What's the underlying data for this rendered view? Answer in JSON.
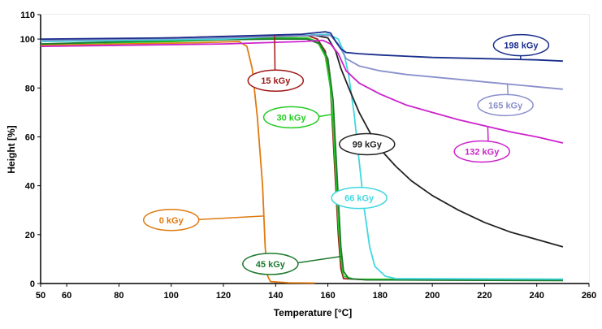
{
  "chart_data": {
    "type": "line",
    "xlabel": "Temperature [°C]",
    "ylabel": "Height [%]",
    "xlim": [
      50,
      260
    ],
    "ylim": [
      0,
      110
    ],
    "x_ticks": [
      50,
      60,
      80,
      100,
      120,
      140,
      160,
      180,
      200,
      220,
      240,
      260
    ],
    "y_ticks": [
      0,
      20,
      40,
      60,
      80,
      100,
      110
    ],
    "grid": true,
    "series": [
      {
        "name": "0 kGy",
        "color": "#E07A10",
        "label_at": [
          100,
          26
        ],
        "points": [
          [
            50,
            97.5
          ],
          [
            80,
            98
          ],
          [
            110,
            98.5
          ],
          [
            126,
            99
          ],
          [
            129,
            97
          ],
          [
            131,
            88
          ],
          [
            133,
            68
          ],
          [
            135,
            40
          ],
          [
            136,
            15
          ],
          [
            137,
            3
          ],
          [
            138,
            0.8
          ],
          [
            145,
            0.3
          ],
          [
            155,
            0.2
          ]
        ]
      },
      {
        "name": "15 kGy",
        "color": "#A01818",
        "label_at": [
          140,
          83
        ],
        "points": [
          [
            50,
            99.5
          ],
          [
            100,
            100.5
          ],
          [
            140,
            101.5
          ],
          [
            152,
            101.5
          ],
          [
            156,
            100
          ],
          [
            159,
            95
          ],
          [
            161,
            80
          ],
          [
            162,
            60
          ],
          [
            163,
            40
          ],
          [
            164,
            20
          ],
          [
            165,
            6
          ],
          [
            166,
            2
          ],
          [
            175,
            1.5
          ],
          [
            250,
            1.3
          ]
        ]
      },
      {
        "name": "30 kGy",
        "color": "#22CC22",
        "label_at": [
          146,
          68
        ],
        "points": [
          [
            50,
            98
          ],
          [
            100,
            99
          ],
          [
            140,
            100.5
          ],
          [
            152,
            100.5
          ],
          [
            156,
            99
          ],
          [
            159,
            93
          ],
          [
            161,
            80
          ],
          [
            162,
            65
          ],
          [
            163,
            45
          ],
          [
            164,
            25
          ],
          [
            165,
            10
          ],
          [
            166,
            3
          ],
          [
            170,
            1.8
          ],
          [
            250,
            1.6
          ]
        ]
      },
      {
        "name": "45 kGy",
        "color": "#1E7A2E",
        "label_at": [
          138,
          8
        ],
        "points": [
          [
            50,
            98
          ],
          [
            100,
            99.5
          ],
          [
            140,
            100
          ],
          [
            152,
            100
          ],
          [
            157,
            98
          ],
          [
            160,
            92
          ],
          [
            162,
            75
          ],
          [
            163,
            55
          ],
          [
            164,
            35
          ],
          [
            165,
            15
          ],
          [
            166,
            5
          ],
          [
            168,
            2
          ],
          [
            175,
            1.5
          ],
          [
            250,
            1.2
          ]
        ]
      },
      {
        "name": "66 kGy",
        "color": "#40D8E0",
        "label_at": [
          172,
          35
        ],
        "points": [
          [
            50,
            99
          ],
          [
            120,
            100
          ],
          [
            150,
            101.5
          ],
          [
            160,
            102
          ],
          [
            164,
            100
          ],
          [
            166,
            95
          ],
          [
            168,
            85
          ],
          [
            170,
            70
          ],
          [
            172,
            50
          ],
          [
            174,
            30
          ],
          [
            176,
            15
          ],
          [
            178,
            7
          ],
          [
            182,
            3
          ],
          [
            186,
            2
          ],
          [
            250,
            1.8
          ]
        ]
      },
      {
        "name": "99 kGy",
        "color": "#222222",
        "label_at": [
          175,
          57
        ],
        "points": [
          [
            50,
            99.5
          ],
          [
            140,
            101
          ],
          [
            155,
            101.5
          ],
          [
            160,
            100.5
          ],
          [
            163,
            95
          ],
          [
            165,
            88
          ],
          [
            168,
            80
          ],
          [
            172,
            70
          ],
          [
            176,
            62
          ],
          [
            180,
            55
          ],
          [
            186,
            48
          ],
          [
            192,
            42
          ],
          [
            200,
            36
          ],
          [
            210,
            30
          ],
          [
            220,
            25
          ],
          [
            230,
            21
          ],
          [
            240,
            18
          ],
          [
            250,
            15
          ]
        ]
      },
      {
        "name": "132 kGy",
        "color": "#CC22CC",
        "label_at": [
          219,
          54
        ],
        "points": [
          [
            50,
            97
          ],
          [
            120,
            98
          ],
          [
            150,
            99
          ],
          [
            158,
            99.5
          ],
          [
            161,
            98
          ],
          [
            164,
            94
          ],
          [
            167,
            87
          ],
          [
            172,
            82
          ],
          [
            180,
            77.5
          ],
          [
            190,
            73
          ],
          [
            200,
            70
          ],
          [
            210,
            67
          ],
          [
            220,
            64.5
          ],
          [
            230,
            62
          ],
          [
            240,
            60
          ],
          [
            250,
            57.5
          ]
        ]
      },
      {
        "name": "165 kGy",
        "color": "#8A90CC",
        "label_at": [
          228,
          73
        ],
        "points": [
          [
            50,
            99.5
          ],
          [
            120,
            100.5
          ],
          [
            155,
            101.5
          ],
          [
            161,
            101.5
          ],
          [
            164,
            98
          ],
          [
            167,
            92
          ],
          [
            172,
            89
          ],
          [
            180,
            87
          ],
          [
            190,
            85.5
          ],
          [
            200,
            84.5
          ],
          [
            210,
            83.5
          ],
          [
            220,
            82.5
          ],
          [
            230,
            81.5
          ],
          [
            240,
            80.5
          ],
          [
            250,
            79.5
          ]
        ]
      },
      {
        "name": "198 kGy",
        "color": "#1A2E8C",
        "label_at": [
          234,
          97.5
        ],
        "points": [
          [
            50,
            100
          ],
          [
            100,
            100.5
          ],
          [
            150,
            102
          ],
          [
            159,
            103
          ],
          [
            161,
            102.5
          ],
          [
            163,
            99
          ],
          [
            165,
            96
          ],
          [
            167,
            94.5
          ],
          [
            172,
            94
          ],
          [
            180,
            93.5
          ],
          [
            200,
            92.5
          ],
          [
            220,
            92
          ],
          [
            240,
            91.5
          ],
          [
            250,
            91
          ]
        ]
      }
    ]
  }
}
